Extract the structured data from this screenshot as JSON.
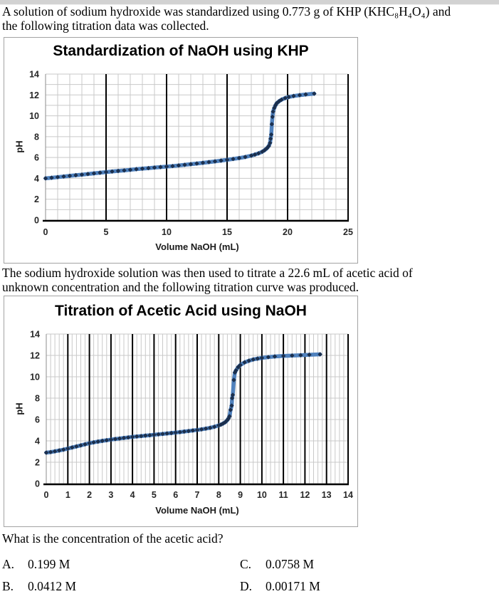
{
  "intro": {
    "line1": "A solution of sodium hydroxide was standardized using 0.773 g of KHP (KHC₈H₄O₄) and",
    "line2": "the following titration data was collected."
  },
  "transition": {
    "line1": "The sodium hydroxide solution was then used to titrate a 22.6 mL of acetic acid of",
    "line2": "unknown concentration and the following titration curve was produced."
  },
  "question": "What is the concentration of the acetic acid?",
  "choices": [
    {
      "label": "A.",
      "value": "0.199 M"
    },
    {
      "label": "B.",
      "value": "0.0412 M"
    },
    {
      "label": "C.",
      "value": "0.0758 M"
    },
    {
      "label": "D.",
      "value": "0.00171 M"
    }
  ],
  "chart_data": [
    {
      "type": "line",
      "title": "Standardization of NaOH using KHP",
      "xlabel": "Volume NaOH (mL)",
      "ylabel": "pH",
      "xlim": [
        0,
        25
      ],
      "ylim": [
        0,
        14
      ],
      "x_ticks": [
        0,
        5,
        10,
        15,
        20,
        25
      ],
      "y_ticks": [
        0,
        2,
        4,
        6,
        8,
        10,
        12,
        14
      ],
      "x_minor_step": 1,
      "y_grid_step": 1,
      "grid": "on",
      "legend": "none",
      "equivalence_volume_mL": 18.7,
      "colors": {
        "line": "#4f81bd",
        "marker": "#1b2f4d",
        "minor_grid": "#c9c9c9",
        "major_grid": "#000000",
        "axis": "#000000"
      },
      "points": [
        [
          0,
          4.0
        ],
        [
          0.5,
          4.06
        ],
        [
          1,
          4.12
        ],
        [
          1.5,
          4.18
        ],
        [
          2,
          4.24
        ],
        [
          2.5,
          4.3
        ],
        [
          3,
          4.36
        ],
        [
          3.5,
          4.42
        ],
        [
          4,
          4.48
        ],
        [
          4.5,
          4.54
        ],
        [
          5,
          4.6
        ],
        [
          5.5,
          4.66
        ],
        [
          6,
          4.71
        ],
        [
          6.5,
          4.76
        ],
        [
          7,
          4.82
        ],
        [
          7.5,
          4.88
        ],
        [
          8,
          4.93
        ],
        [
          8.5,
          4.98
        ],
        [
          9,
          5.03
        ],
        [
          9.5,
          5.08
        ],
        [
          10,
          5.13
        ],
        [
          10.5,
          5.18
        ],
        [
          11,
          5.24
        ],
        [
          11.5,
          5.3
        ],
        [
          12,
          5.36
        ],
        [
          12.5,
          5.42
        ],
        [
          13,
          5.49
        ],
        [
          13.5,
          5.56
        ],
        [
          14,
          5.63
        ],
        [
          14.5,
          5.7
        ],
        [
          15,
          5.78
        ],
        [
          15.5,
          5.86
        ],
        [
          16,
          5.95
        ],
        [
          16.5,
          6.05
        ],
        [
          17,
          6.18
        ],
        [
          17.3,
          6.28
        ],
        [
          17.6,
          6.4
        ],
        [
          17.9,
          6.55
        ],
        [
          18.1,
          6.7
        ],
        [
          18.3,
          6.9
        ],
        [
          18.45,
          7.1
        ],
        [
          18.55,
          7.4
        ],
        [
          18.6,
          7.8
        ],
        [
          18.65,
          8.2
        ],
        [
          18.7,
          9.2
        ],
        [
          18.75,
          9.9
        ],
        [
          18.8,
          10.4
        ],
        [
          18.9,
          10.75
        ],
        [
          19,
          11.0
        ],
        [
          19.1,
          11.2
        ],
        [
          19.3,
          11.4
        ],
        [
          19.5,
          11.55
        ],
        [
          19.8,
          11.7
        ],
        [
          20.1,
          11.8
        ],
        [
          20.5,
          11.9
        ],
        [
          21,
          11.98
        ],
        [
          21.5,
          12.05
        ],
        [
          22.2,
          12.12
        ]
      ]
    },
    {
      "type": "line",
      "title": "Titration of Acetic Acid using NaOH",
      "xlabel": "Volume NaOH (mL)",
      "ylabel": "pH",
      "xlim": [
        0,
        14
      ],
      "ylim": [
        0,
        14
      ],
      "x_ticks": [
        0,
        1,
        2,
        3,
        4,
        5,
        6,
        7,
        8,
        9,
        10,
        11,
        12,
        13,
        14
      ],
      "y_ticks": [
        0,
        2,
        4,
        6,
        8,
        10,
        12,
        14
      ],
      "x_minor_step": 0.2,
      "y_grid_step": 2,
      "grid": "on",
      "legend": "none",
      "equivalence_volume_mL": 8.6,
      "colors": {
        "line": "#4f81bd",
        "marker": "#1b2f4d",
        "minor_grid": "#c9c9c9",
        "major_grid": "#000000",
        "axis": "#000000"
      },
      "points": [
        [
          0,
          2.9
        ],
        [
          0.2,
          2.95
        ],
        [
          0.4,
          3.02
        ],
        [
          0.6,
          3.1
        ],
        [
          0.8,
          3.18
        ],
        [
          1,
          3.28
        ],
        [
          1.2,
          3.38
        ],
        [
          1.4,
          3.48
        ],
        [
          1.6,
          3.58
        ],
        [
          1.8,
          3.68
        ],
        [
          2,
          3.78
        ],
        [
          2.2,
          3.86
        ],
        [
          2.4,
          3.93
        ],
        [
          2.6,
          4.0
        ],
        [
          2.8,
          4.06
        ],
        [
          3,
          4.12
        ],
        [
          3.2,
          4.17
        ],
        [
          3.4,
          4.22
        ],
        [
          3.6,
          4.27
        ],
        [
          3.8,
          4.32
        ],
        [
          4,
          4.37
        ],
        [
          4.2,
          4.41
        ],
        [
          4.4,
          4.45
        ],
        [
          4.6,
          4.49
        ],
        [
          4.8,
          4.53
        ],
        [
          5,
          4.57
        ],
        [
          5.2,
          4.61
        ],
        [
          5.4,
          4.65
        ],
        [
          5.6,
          4.69
        ],
        [
          5.8,
          4.73
        ],
        [
          6,
          4.78
        ],
        [
          6.2,
          4.82
        ],
        [
          6.4,
          4.87
        ],
        [
          6.6,
          4.92
        ],
        [
          6.8,
          4.97
        ],
        [
          7,
          5.02
        ],
        [
          7.2,
          5.08
        ],
        [
          7.4,
          5.15
        ],
        [
          7.6,
          5.22
        ],
        [
          7.8,
          5.32
        ],
        [
          8,
          5.45
        ],
        [
          8.1,
          5.52
        ],
        [
          8.2,
          5.62
        ],
        [
          8.3,
          5.75
        ],
        [
          8.4,
          5.95
        ],
        [
          8.45,
          6.1
        ],
        [
          8.5,
          6.3
        ],
        [
          8.55,
          6.9
        ],
        [
          8.6,
          7.3
        ],
        [
          8.62,
          8.0
        ],
        [
          8.65,
          8.3
        ],
        [
          8.7,
          9.7
        ],
        [
          8.75,
          10.4
        ],
        [
          8.8,
          10.6
        ],
        [
          8.9,
          10.9
        ],
        [
          9,
          11.1
        ],
        [
          9.2,
          11.35
        ],
        [
          9.4,
          11.5
        ],
        [
          9.6,
          11.62
        ],
        [
          9.8,
          11.7
        ],
        [
          10,
          11.77
        ],
        [
          10.3,
          11.84
        ],
        [
          10.6,
          11.9
        ],
        [
          11,
          11.95
        ],
        [
          11.4,
          11.99
        ],
        [
          11.8,
          12.02
        ],
        [
          12.2,
          12.06
        ],
        [
          12.7,
          12.1
        ]
      ]
    }
  ]
}
